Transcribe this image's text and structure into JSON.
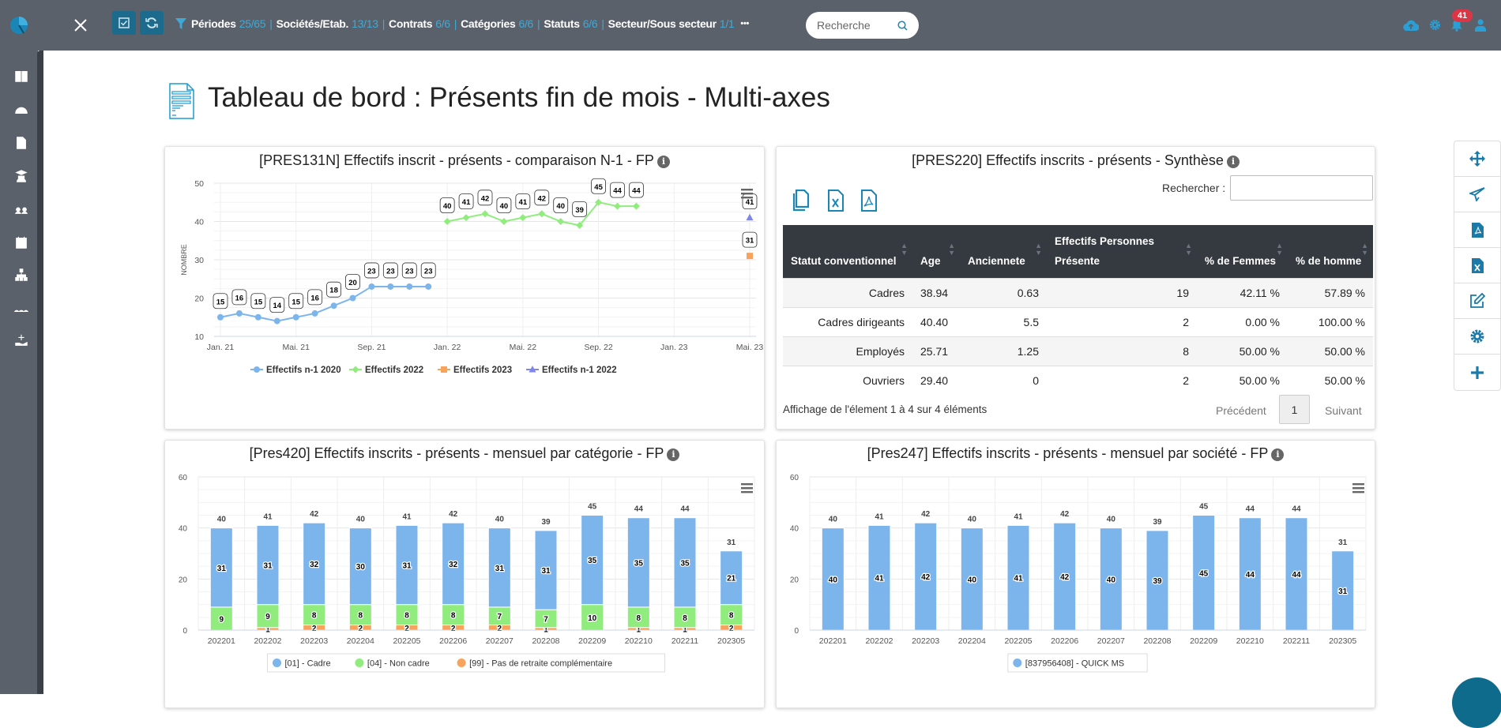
{
  "topbar": {
    "filters": [
      {
        "label": "Périodes",
        "value": "25/65"
      },
      {
        "label": "Sociétés/Etab.",
        "value": "13/13"
      },
      {
        "label": "Contrats",
        "value": "6/6"
      },
      {
        "label": "Catégories",
        "value": "6/6"
      },
      {
        "label": "Statuts",
        "value": "6/6"
      },
      {
        "label": "Secteur/Sous secteur",
        "value": "1/1"
      }
    ],
    "more": "•••",
    "search_placeholder": "Recherche",
    "notifications_count": "41"
  },
  "sidebar": {
    "items": [
      "book-icon",
      "dashboard-icon",
      "file-icon",
      "graduate-icon",
      "users-icon",
      "calendar-icon",
      "org-chart-icon",
      "group-icon",
      "hand-plus-icon"
    ]
  },
  "page_title": "Tableau de bord : Présents fin de mois - Multi-axes",
  "right_toolbar": [
    "move-icon",
    "send-icon",
    "pdf-icon",
    "excel-icon",
    "edit-icon",
    "gear-icon",
    "plus-icon"
  ],
  "colors": {
    "accent": "#1a86b8",
    "topbar": "#5b616b",
    "cadre": "#7cb5ec",
    "non_cadre": "#90ed7d",
    "pas_retraite": "#f7a35c",
    "n1_2022": "#8085e9",
    "badge": "#dc3545"
  },
  "chart_data": [
    {
      "type": "line",
      "title": "[PRES131N] Effectifs inscrit - présents - comparaison N-1 - FP",
      "ylabel": "NOMBRE",
      "ylim": [
        10,
        50
      ],
      "yticks": [
        10,
        20,
        30,
        40,
        50
      ],
      "xlim": [
        "2021-01",
        "2023-05"
      ],
      "xticks": [
        {
          "x": "2021-01",
          "label": "Jan. 21"
        },
        {
          "x": "2021-05",
          "label": "Mai. 21"
        },
        {
          "x": "2021-09",
          "label": "Sep. 21"
        },
        {
          "x": "2022-01",
          "label": "Jan. 22"
        },
        {
          "x": "2022-05",
          "label": "Mai. 22"
        },
        {
          "x": "2022-09",
          "label": "Sep. 22"
        },
        {
          "x": "2023-01",
          "label": "Jan. 23"
        },
        {
          "x": "2023-05",
          "label": "Mai. 23"
        }
      ],
      "legend_position": "bottom",
      "series": [
        {
          "name": "Effectifs n-1 2020",
          "color": "#7cb5ec",
          "marker": "circle",
          "x": [
            "2021-01",
            "2021-02",
            "2021-03",
            "2021-04",
            "2021-05",
            "2021-06",
            "2021-07",
            "2021-08",
            "2021-09",
            "2021-10",
            "2021-11",
            "2021-12"
          ],
          "values": [
            15,
            16,
            15,
            14,
            15,
            16,
            18,
            20,
            23,
            23,
            23,
            23
          ]
        },
        {
          "name": "Effectifs 2022",
          "color": "#90ed7d",
          "marker": "diamond",
          "x": [
            "2022-01",
            "2022-02",
            "2022-03",
            "2022-04",
            "2022-05",
            "2022-06",
            "2022-07",
            "2022-08",
            "2022-09",
            "2022-10",
            "2022-11"
          ],
          "values": [
            40,
            41,
            42,
            40,
            41,
            42,
            40,
            39,
            45,
            44,
            44
          ]
        },
        {
          "name": "Effectifs 2023",
          "color": "#f7a35c",
          "marker": "square",
          "x": [
            "2023-05"
          ],
          "values": [
            31
          ]
        },
        {
          "name": "Effectifs n-1 2022",
          "color": "#8085e9",
          "marker": "triangle",
          "x": [
            "2023-05"
          ],
          "values": [
            41
          ]
        }
      ]
    },
    {
      "type": "bar",
      "stacked": true,
      "title": "[Pres420] Effectifs inscrits - présents - mensuel par catégorie - FP",
      "ylim": [
        0,
        60
      ],
      "yticks": [
        0,
        20,
        40,
        60
      ],
      "legend_position": "bottom",
      "categories": [
        "202201",
        "202202",
        "202203",
        "202204",
        "202205",
        "202206",
        "202207",
        "202208",
        "202209",
        "202210",
        "202211",
        "202305"
      ],
      "totals": [
        40,
        41,
        42,
        40,
        41,
        42,
        40,
        39,
        45,
        44,
        44,
        31
      ],
      "series": [
        {
          "name": "[99] - Pas de retraite complémentaire",
          "color": "#f7a35c",
          "values": [
            0,
            1,
            2,
            2,
            2,
            2,
            2,
            1,
            0,
            1,
            1,
            2
          ]
        },
        {
          "name": "[04] - Non cadre",
          "color": "#90ed7d",
          "values": [
            9,
            9,
            8,
            8,
            8,
            8,
            7,
            7,
            10,
            8,
            8,
            8
          ]
        },
        {
          "name": "[01] - Cadre",
          "color": "#7cb5ec",
          "values": [
            31,
            31,
            32,
            30,
            31,
            32,
            31,
            31,
            35,
            35,
            35,
            21
          ]
        }
      ],
      "legend_order": [
        "[01] - Cadre",
        "[04] - Non cadre",
        "[99] - Pas de retraite complémentaire"
      ]
    },
    {
      "type": "bar",
      "stacked": true,
      "title": "[Pres247] Effectifs inscrits - présents - mensuel par société - FP",
      "ylim": [
        0,
        60
      ],
      "yticks": [
        0,
        20,
        40,
        60
      ],
      "legend_position": "bottom",
      "categories": [
        "202201",
        "202202",
        "202203",
        "202204",
        "202205",
        "202206",
        "202207",
        "202208",
        "202209",
        "202210",
        "202211",
        "202305"
      ],
      "totals": [
        40,
        41,
        42,
        40,
        41,
        42,
        40,
        39,
        45,
        44,
        44,
        31
      ],
      "series": [
        {
          "name": "[837956408] - QUICK MS",
          "color": "#7cb5ec",
          "values": [
            40,
            41,
            42,
            40,
            41,
            42,
            40,
            39,
            45,
            44,
            44,
            31
          ]
        }
      ],
      "legend_order": [
        "[837956408] - QUICK MS"
      ]
    }
  ],
  "synthese": {
    "title": "[PRES220] Effectifs inscrits - présents - Synthèse",
    "search_label": "Rechercher :",
    "search_value": "",
    "columns": [
      "Statut conventionnel",
      "Age",
      "Anciennete",
      "Effectifs Personnes Présente",
      "% de Femmes",
      "% de homme"
    ],
    "rows": [
      [
        "Cadres",
        "38.94",
        "0.63",
        "19",
        "42.11 %",
        "57.89 %"
      ],
      [
        "Cadres dirigeants",
        "40.40",
        "5.5",
        "2",
        "0.00 %",
        "100.00 %"
      ],
      [
        "Employés",
        "25.71",
        "1.25",
        "8",
        "50.00 %",
        "50.00 %"
      ],
      [
        "Ouvriers",
        "29.40",
        "0",
        "2",
        "50.00 %",
        "50.00 %"
      ]
    ],
    "info": "Affichage de l'élement 1 à 4 sur 4 éléments",
    "prev": "Précédent",
    "page": "1",
    "next": "Suivant"
  }
}
